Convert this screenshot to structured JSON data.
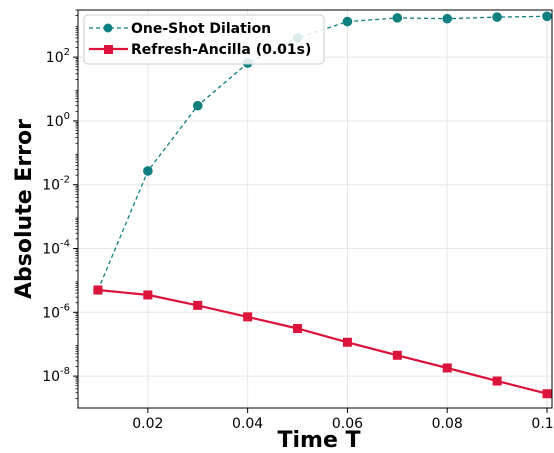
{
  "chart_data": {
    "type": "line",
    "title": "",
    "xlabel": "Time T",
    "ylabel": "Absolute Error",
    "xlim": [
      0.006,
      0.101
    ],
    "ylim": [
      1e-09,
      3000
    ],
    "yscale": "log",
    "grid": true,
    "legend_position": "top-left",
    "x_ticks": [
      "0.02",
      "0.04",
      "0.06",
      "0.08",
      "0.10"
    ],
    "y_ticks": [
      {
        "exp": "-8",
        "value": 1e-08
      },
      {
        "exp": "-6",
        "value": 1e-06
      },
      {
        "exp": "-4",
        "value": 0.0001
      },
      {
        "exp": "-2",
        "value": 0.01
      },
      {
        "exp": "0",
        "value": 1
      },
      {
        "exp": "2",
        "value": 100
      }
    ],
    "x_tick_values": [
      0.02,
      0.04,
      0.06,
      0.08,
      0.1
    ],
    "y_tick_base": "10",
    "x": [
      0.01,
      0.02,
      0.03,
      0.04,
      0.05,
      0.06,
      0.07,
      0.08,
      0.09,
      0.1
    ],
    "series": [
      {
        "name": "One-Shot Dilation",
        "color": "#0f7f7f",
        "line_style": "dashed",
        "marker": "circle",
        "values": [
          5e-06,
          0.027,
          3.0,
          65,
          400,
          1300,
          1700,
          1600,
          1800,
          1900
        ]
      },
      {
        "name": "Refresh-Ancilla (0.01s)",
        "color": "#dc143c",
        "line_style": "solid",
        "marker": "square",
        "values": [
          5e-06,
          3.5e-06,
          1.65e-06,
          7.2e-07,
          3.1e-07,
          1.15e-07,
          4.5e-08,
          1.8e-08,
          7e-09,
          2.8e-09
        ]
      }
    ]
  }
}
